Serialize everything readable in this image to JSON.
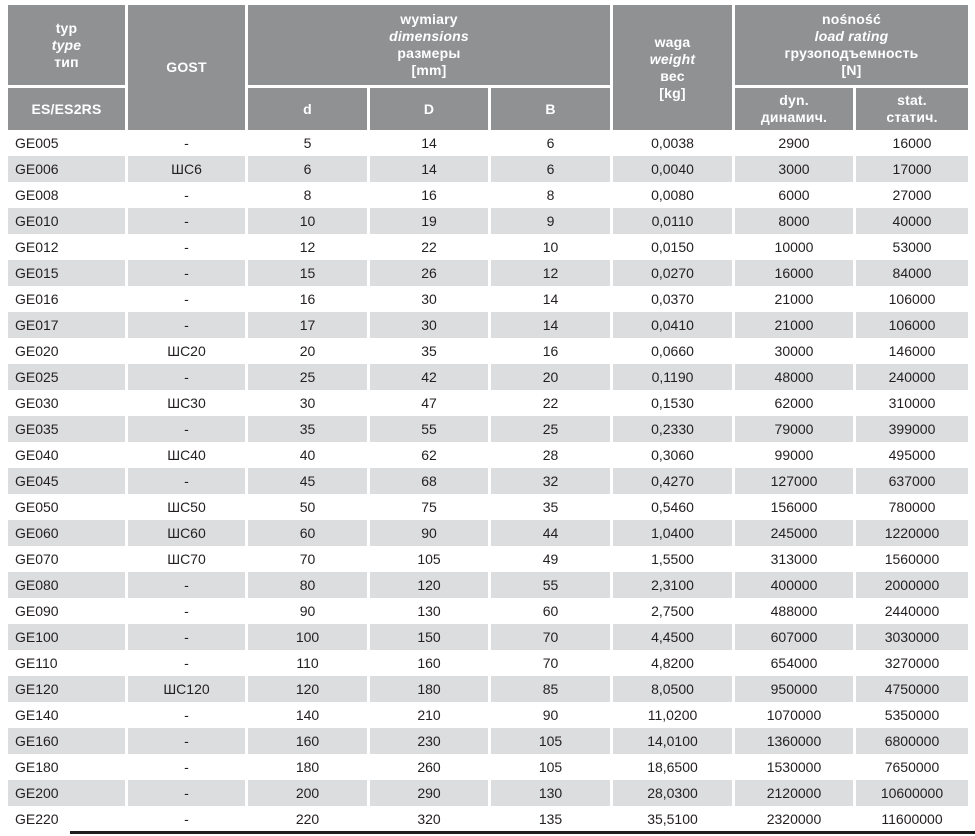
{
  "colors": {
    "header_bg": "#8f9193",
    "header_text": "#ffffff",
    "row_stripe": "#dcddde",
    "row_white": "#ffffff",
    "body_text": "#231f20",
    "shadow": "#1e1e1e"
  },
  "header": {
    "typ_lines": [
      "typ",
      "type",
      "тип"
    ],
    "es": "ES/ES2RS",
    "gost": "GOST",
    "dims_lines": [
      "wymiary",
      "dimensions",
      "размеры",
      "[mm]"
    ],
    "d": "d",
    "D": "D",
    "B": "B",
    "waga_lines": [
      "waga",
      "weight",
      "вес",
      "[kg]"
    ],
    "load_lines": [
      "nośność",
      "load rating",
      "грузоподъемность",
      "[N]"
    ],
    "dyn_lines": [
      "dyn.",
      "динамич."
    ],
    "stat_lines": [
      "stat.",
      "статич."
    ]
  },
  "columns": [
    "type",
    "gost",
    "d",
    "D",
    "B",
    "weight_kg",
    "dynamic_N",
    "static_N"
  ],
  "rows": [
    [
      "GE005",
      "-",
      "5",
      "14",
      "6",
      "0,0038",
      "2900",
      "16000"
    ],
    [
      "GE006",
      "ШС6",
      "6",
      "14",
      "6",
      "0,0040",
      "3000",
      "17000"
    ],
    [
      "GE008",
      "-",
      "8",
      "16",
      "8",
      "0,0080",
      "6000",
      "27000"
    ],
    [
      "GE010",
      "-",
      "10",
      "19",
      "9",
      "0,0110",
      "8000",
      "40000"
    ],
    [
      "GE012",
      "-",
      "12",
      "22",
      "10",
      "0,0150",
      "10000",
      "53000"
    ],
    [
      "GE015",
      "-",
      "15",
      "26",
      "12",
      "0,0270",
      "16000",
      "84000"
    ],
    [
      "GE016",
      "-",
      "16",
      "30",
      "14",
      "0,0370",
      "21000",
      "106000"
    ],
    [
      "GE017",
      "-",
      "17",
      "30",
      "14",
      "0,0410",
      "21000",
      "106000"
    ],
    [
      "GE020",
      "ШС20",
      "20",
      "35",
      "16",
      "0,0660",
      "30000",
      "146000"
    ],
    [
      "GE025",
      "-",
      "25",
      "42",
      "20",
      "0,1190",
      "48000",
      "240000"
    ],
    [
      "GE030",
      "ШС30",
      "30",
      "47",
      "22",
      "0,1530",
      "62000",
      "310000"
    ],
    [
      "GE035",
      "-",
      "35",
      "55",
      "25",
      "0,2330",
      "79000",
      "399000"
    ],
    [
      "GE040",
      "ШС40",
      "40",
      "62",
      "28",
      "0,3060",
      "99000",
      "495000"
    ],
    [
      "GE045",
      "-",
      "45",
      "68",
      "32",
      "0,4270",
      "127000",
      "637000"
    ],
    [
      "GE050",
      "ШС50",
      "50",
      "75",
      "35",
      "0,5460",
      "156000",
      "780000"
    ],
    [
      "GE060",
      "ШС60",
      "60",
      "90",
      "44",
      "1,0400",
      "245000",
      "1220000"
    ],
    [
      "GE070",
      "ШС70",
      "70",
      "105",
      "49",
      "1,5500",
      "313000",
      "1560000"
    ],
    [
      "GE080",
      "-",
      "80",
      "120",
      "55",
      "2,3100",
      "400000",
      "2000000"
    ],
    [
      "GE090",
      "-",
      "90",
      "130",
      "60",
      "2,7500",
      "488000",
      "2440000"
    ],
    [
      "GE100",
      "-",
      "100",
      "150",
      "70",
      "4,4500",
      "607000",
      "3030000"
    ],
    [
      "GE110",
      "-",
      "110",
      "160",
      "70",
      "4,8200",
      "654000",
      "3270000"
    ],
    [
      "GE120",
      "ШС120",
      "120",
      "180",
      "85",
      "8,0500",
      "950000",
      "4750000"
    ],
    [
      "GE140",
      "-",
      "140",
      "210",
      "90",
      "11,0200",
      "1070000",
      "5350000"
    ],
    [
      "GE160",
      "-",
      "160",
      "230",
      "105",
      "14,0100",
      "1360000",
      "6800000"
    ],
    [
      "GE180",
      "-",
      "180",
      "260",
      "105",
      "18,6500",
      "1530000",
      "7650000"
    ],
    [
      "GE200",
      "-",
      "200",
      "290",
      "130",
      "28,0300",
      "2120000",
      "10600000"
    ],
    [
      "GE220",
      "-",
      "220",
      "320",
      "135",
      "35,5100",
      "2320000",
      "11600000"
    ]
  ]
}
